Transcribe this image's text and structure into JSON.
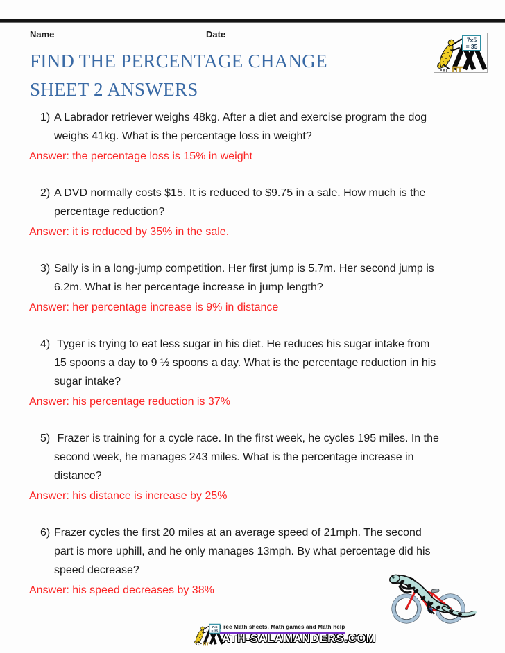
{
  "header": {
    "name_label": "Name",
    "date_label": "Date"
  },
  "title": {
    "line1": "FIND THE PERCENTAGE CHANGE",
    "line2": "SHEET 2 ANSWERS"
  },
  "logo": {
    "board_line1": "7x5",
    "board_line2": "= 35"
  },
  "questions": [
    {
      "number": "1)",
      "lines": [
        "A Labrador retriever weighs 48kg. After a diet and exercise program the dog",
        "weighs 41kg. What is the percentage loss in weight?"
      ],
      "answer": "Answer: the percentage loss is 15% in weight"
    },
    {
      "number": "2)",
      "lines": [
        "A DVD normally costs $15. It is reduced to $9.75 in a sale. How much is the",
        "percentage reduction?"
      ],
      "answer": "Answer: it is reduced by 35% in the sale."
    },
    {
      "number": "3)",
      "lines": [
        "Sally is in a long-jump competition. Her first jump is 5.7m. Her second jump is",
        "6.2m. What is her percentage increase in jump length?"
      ],
      "answer": "Answer: her percentage increase is 9% in distance"
    },
    {
      "number": "4)",
      "lines": [
        " Tyger is trying to eat less sugar in his diet. He reduces his sugar intake from",
        "15 spoons a day to 9 ½ spoons a day. What is the percentage reduction in his",
        "sugar intake?"
      ],
      "answer": "Answer: his percentage reduction is 37%"
    },
    {
      "number": "5)",
      "lines": [
        " Frazer is training for a cycle race. In the first week, he cycles 195 miles. In the",
        "second week, he manages 243 miles. What is the percentage increase in",
        "distance?"
      ],
      "answer": "Answer: his distance is increase by 25%"
    },
    {
      "number": "6)",
      "lines": [
        "Frazer cycles the first 20 miles at an average speed of 21mph. The second",
        "part is more uphill, and he only manages 13mph. By what percentage did his",
        "speed decrease?"
      ],
      "answer": "Answer: his speed decreases by 38%"
    }
  ],
  "footer": {
    "tagline": "Free Math sheets, Math games and Math help",
    "wordmark": "ATH-SALAMANDERS.COM"
  },
  "colors": {
    "title_blue": "#3a6aa5",
    "answer_red": "#fb2424",
    "footer_purple": "#7630c8",
    "logo_yellow": "#f0cf25",
    "bike_red": "#e01d1d",
    "salamander_teal": "#b7ded9"
  }
}
